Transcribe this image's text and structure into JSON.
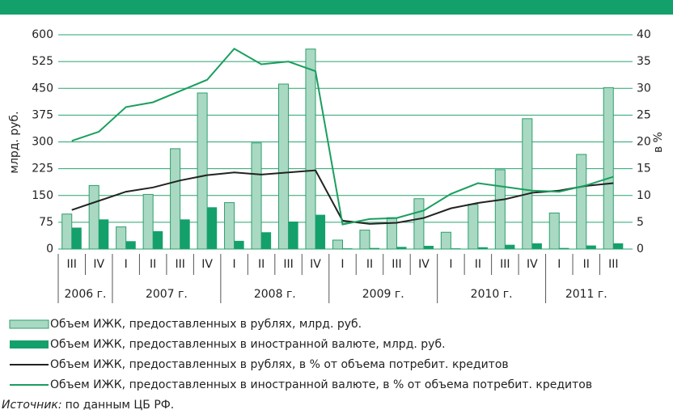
{
  "chart_data": {
    "type": "bar_line",
    "y_label": "млрд. руб.",
    "y2_label": "в %",
    "groups": [
      {
        "label": "2006 г.",
        "categories": [
          "III",
          "IV"
        ]
      },
      {
        "label": "2007 г.",
        "categories": [
          "I",
          "II",
          "III",
          "IV"
        ]
      },
      {
        "label": "2008 г.",
        "categories": [
          "I",
          "II",
          "III",
          "IV"
        ]
      },
      {
        "label": "2009 г.",
        "categories": [
          "I",
          "II",
          "III",
          "IV"
        ]
      },
      {
        "label": "2010 г.",
        "categories": [
          "I",
          "II",
          "III",
          "IV"
        ]
      },
      {
        "label": "2011 г.",
        "categories": [
          "I",
          "II",
          "III"
        ]
      }
    ],
    "series": [
      {
        "name": "Объем ИЖК, предоставленных в рублях, млрд. руб.",
        "kind": "bar",
        "color": "#a9d9c2",
        "values": [
          98,
          178,
          62,
          153,
          281,
          437,
          130,
          297,
          462,
          560,
          25,
          53,
          88,
          141,
          47,
          125,
          222,
          365,
          101,
          265,
          452
        ]
      },
      {
        "name": "Объем ИЖК, предоставленных в иностранной валюте, млрд. руб.",
        "kind": "bar",
        "color": "#14a06b",
        "values": [
          60,
          83,
          22,
          50,
          83,
          117,
          23,
          47,
          77,
          96,
          2,
          3,
          6,
          9,
          2,
          5,
          12,
          16,
          3,
          10,
          16
        ]
      },
      {
        "name": "Объем ИЖК, предоставленных в рублях, в % от объема потребит. кредитов",
        "kind": "line",
        "axis": "y2",
        "color": "#222222",
        "values": [
          7.3,
          9,
          10.7,
          11.5,
          12.8,
          13.8,
          14.3,
          13.9,
          14.3,
          14.7,
          5.3,
          4.7,
          4.9,
          5.8,
          7.6,
          8.6,
          9.3,
          10.5,
          10.9,
          11.8,
          12.3
        ]
      },
      {
        "name": "Объем ИЖК, предоставленных в иностранной валюте, в % от объема потребит. кредитов",
        "kind": "line",
        "axis": "y2",
        "color": "#1a9e5e",
        "values": [
          20.2,
          21.9,
          26.5,
          27.4,
          29.5,
          31.6,
          37.4,
          34.5,
          35.0,
          33.2,
          4.6,
          5.6,
          5.8,
          7.2,
          10.3,
          12.3,
          11.6,
          10.9,
          10.7,
          11.9,
          13.5
        ]
      }
    ],
    "ylim": [
      0,
      600
    ],
    "yticks": [
      0,
      75,
      150,
      225,
      300,
      375,
      450,
      525,
      600
    ],
    "y2lim": [
      0,
      40
    ],
    "y2ticks": [
      0,
      5,
      10,
      15,
      20,
      25,
      30,
      35,
      40
    ],
    "grid": true,
    "source": {
      "label": "Источник:",
      "text": "по данным ЦБ РФ."
    }
  }
}
